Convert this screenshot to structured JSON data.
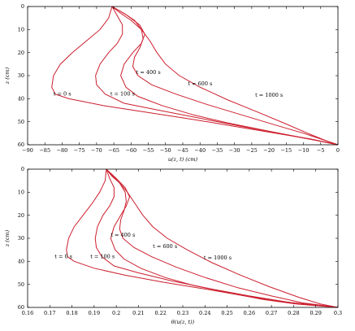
{
  "chart_data": [
    {
      "type": "line",
      "xlabel": "u(z, t) (cm)",
      "ylabel": "z (cm)",
      "xlim": [
        -90,
        0
      ],
      "ylim": [
        0,
        60
      ],
      "y_inverted": true,
      "grid": false,
      "xticks": [
        "−90",
        "−85",
        "−80",
        "−75",
        "−70",
        "−65",
        "−60",
        "−55",
        "−50",
        "−45",
        "−40",
        "−35",
        "−30",
        "−25",
        "−20",
        "−15",
        "−10",
        "−5",
        "0"
      ],
      "yticks": [
        "0",
        "10",
        "20",
        "30",
        "40",
        "50",
        "60"
      ],
      "line_color": "#cc1f2e",
      "series": [
        {
          "name": "t = 0 s",
          "label_at": [
            -82.5,
            38
          ],
          "points": [
            [
              -65.5,
              0
            ],
            [
              -66.5,
              5
            ],
            [
              -69,
              10
            ],
            [
              -73,
              15
            ],
            [
              -77,
              20
            ],
            [
              -80.5,
              25
            ],
            [
              -82.5,
              30
            ],
            [
              -83,
              35
            ],
            [
              -82,
              38
            ],
            [
              -78,
              40
            ],
            [
              -68,
              43
            ],
            [
              -55,
              46
            ],
            [
              -42,
              49
            ],
            [
              -30,
              52
            ],
            [
              -18,
              55
            ],
            [
              -8,
              57.5
            ],
            [
              0,
              60
            ]
          ]
        },
        {
          "name": "t = 100 s",
          "label_at": [
            -66,
            38
          ],
          "points": [
            [
              -65.5,
              0
            ],
            [
              -64,
              4
            ],
            [
              -62.5,
              8
            ],
            [
              -62.5,
              12
            ],
            [
              -64,
              16
            ],
            [
              -66.5,
              20
            ],
            [
              -69,
              25
            ],
            [
              -70.3,
              30
            ],
            [
              -70,
              34
            ],
            [
              -67.5,
              38
            ],
            [
              -62,
              42
            ],
            [
              -52,
              45
            ],
            [
              -40,
              48.5
            ],
            [
              -28,
              52
            ],
            [
              -17,
              55
            ],
            [
              -7,
              57.8
            ],
            [
              0,
              60
            ]
          ]
        },
        {
          "name": "t = 400 s",
          "label_at": [
            -58.5,
            28.5
          ],
          "points": [
            [
              -65.5,
              0
            ],
            [
              -61,
              4
            ],
            [
              -57.5,
              8
            ],
            [
              -56,
              12
            ],
            [
              -57,
              16
            ],
            [
              -59.5,
              20
            ],
            [
              -62,
              25
            ],
            [
              -63,
              30
            ],
            [
              -61.5,
              35
            ],
            [
              -58,
              39
            ],
            [
              -51,
              43
            ],
            [
              -42,
              47
            ],
            [
              -32,
              50.5
            ],
            [
              -22,
              53.5
            ],
            [
              -12,
              56.5
            ],
            [
              -5,
              58.5
            ],
            [
              0,
              60
            ]
          ]
        },
        {
          "name": "t = 600 s",
          "label_at": [
            -43.5,
            33.5
          ],
          "points": [
            [
              -65.5,
              0
            ],
            [
              -62,
              3
            ],
            [
              -59,
              6
            ],
            [
              -57,
              10
            ],
            [
              -56.5,
              14
            ],
            [
              -57.5,
              18
            ],
            [
              -59,
              22
            ],
            [
              -59.5,
              26
            ],
            [
              -58,
              30
            ],
            [
              -54,
              34
            ],
            [
              -47,
              38
            ],
            [
              -38,
              42.5
            ],
            [
              -28,
              47
            ],
            [
              -18,
              51.5
            ],
            [
              -10,
              55
            ],
            [
              -4,
              58
            ],
            [
              0,
              60
            ]
          ]
        },
        {
          "name": "t = 1000 s",
          "label_at": [
            -24,
            38.5
          ],
          "points": [
            [
              -65.5,
              0
            ],
            [
              -63,
              3
            ],
            [
              -60,
              6
            ],
            [
              -57,
              10
            ],
            [
              -54.5,
              15
            ],
            [
              -52.5,
              20
            ],
            [
              -50,
              25
            ],
            [
              -46,
              30
            ],
            [
              -40,
              35
            ],
            [
              -32,
              40.5
            ],
            [
              -23,
              46
            ],
            [
              -15,
              51
            ],
            [
              -8,
              55.5
            ],
            [
              -3,
              58.5
            ],
            [
              0,
              60
            ]
          ]
        }
      ]
    },
    {
      "type": "line",
      "xlabel": "θ(u(z, t))",
      "ylabel": "z (cm)",
      "xlim": [
        0.16,
        0.3
      ],
      "ylim": [
        0,
        60
      ],
      "y_inverted": true,
      "grid": false,
      "xticks": [
        "0.16",
        "0.17",
        "0.18",
        "0.19",
        "0.2",
        "0.21",
        "0.22",
        "0.23",
        "0.24",
        "0.25",
        "0.26",
        "0.27",
        "0.28",
        "0.29",
        "0.3"
      ],
      "yticks": [
        "0",
        "10",
        "20",
        "30",
        "40",
        "50",
        "60"
      ],
      "line_color": "#cc1f2e",
      "series": [
        {
          "name": "t = 0 s",
          "label_at": [
            0.1722,
            38
          ],
          "points": [
            [
              0.1955,
              0
            ],
            [
              0.195,
              5
            ],
            [
              0.1925,
              10
            ],
            [
              0.189,
              15
            ],
            [
              0.185,
              20
            ],
            [
              0.181,
              25
            ],
            [
              0.1785,
              30
            ],
            [
              0.1775,
              35
            ],
            [
              0.178,
              38
            ],
            [
              0.181,
              40
            ],
            [
              0.19,
              43
            ],
            [
              0.204,
              46
            ],
            [
              0.221,
              49
            ],
            [
              0.24,
              52
            ],
            [
              0.258,
              55
            ],
            [
              0.275,
              57.5
            ],
            [
              0.3,
              60
            ]
          ]
        },
        {
          "name": "t = 100 s",
          "label_at": [
            0.1883,
            38
          ],
          "points": [
            [
              0.1955,
              0
            ],
            [
              0.197,
              4
            ],
            [
              0.199,
              8
            ],
            [
              0.199,
              12
            ],
            [
              0.197,
              16
            ],
            [
              0.194,
              20
            ],
            [
              0.1915,
              25
            ],
            [
              0.1905,
              30
            ],
            [
              0.191,
              34
            ],
            [
              0.1935,
              38
            ],
            [
              0.199,
              42
            ],
            [
              0.21,
              45
            ],
            [
              0.225,
              48.5
            ],
            [
              0.243,
              52
            ],
            [
              0.26,
              55
            ],
            [
              0.278,
              57.8
            ],
            [
              0.3,
              60
            ]
          ]
        },
        {
          "name": "t = 400 s",
          "label_at": [
            0.1975,
            28.5
          ],
          "points": [
            [
              0.1955,
              0
            ],
            [
              0.2,
              4
            ],
            [
              0.204,
              8
            ],
            [
              0.206,
              12
            ],
            [
              0.2045,
              16
            ],
            [
              0.202,
              20
            ],
            [
              0.199,
              25
            ],
            [
              0.1975,
              30
            ],
            [
              0.1995,
              35
            ],
            [
              0.2035,
              39
            ],
            [
              0.211,
              43
            ],
            [
              0.222,
              47
            ],
            [
              0.235,
              50.5
            ],
            [
              0.25,
              53.5
            ],
            [
              0.266,
              56.5
            ],
            [
              0.281,
              58.5
            ],
            [
              0.3,
              60
            ]
          ]
        },
        {
          "name": "t = 600 s",
          "label_at": [
            0.2165,
            33.5
          ],
          "points": [
            [
              0.1955,
              0
            ],
            [
              0.1985,
              3
            ],
            [
              0.2015,
              6
            ],
            [
              0.204,
              10
            ],
            [
              0.2045,
              14
            ],
            [
              0.2035,
              18
            ],
            [
              0.202,
              22
            ],
            [
              0.2015,
              26
            ],
            [
              0.203,
              30
            ],
            [
              0.208,
              34
            ],
            [
              0.216,
              38
            ],
            [
              0.227,
              42.5
            ],
            [
              0.24,
              47
            ],
            [
              0.255,
              51.5
            ],
            [
              0.27,
              55
            ],
            [
              0.284,
              58
            ],
            [
              0.3,
              60
            ]
          ]
        },
        {
          "name": "t = 1000 s",
          "label_at": [
            0.2395,
            38.5
          ],
          "points": [
            [
              0.1955,
              0
            ],
            [
              0.198,
              3
            ],
            [
              0.2015,
              6
            ],
            [
              0.205,
              10
            ],
            [
              0.2085,
              15
            ],
            [
              0.212,
              20
            ],
            [
              0.2165,
              25
            ],
            [
              0.223,
              30
            ],
            [
              0.232,
              35
            ],
            [
              0.243,
              40.5
            ],
            [
              0.256,
              46
            ],
            [
              0.269,
              51
            ],
            [
              0.282,
              55.5
            ],
            [
              0.292,
              58.5
            ],
            [
              0.3,
              60
            ]
          ]
        }
      ]
    }
  ]
}
